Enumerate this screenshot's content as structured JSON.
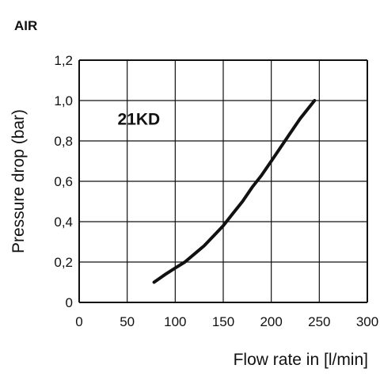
{
  "heading": "AIR",
  "chart_data": {
    "type": "line",
    "xlabel": "Flow rate in [l/min]",
    "ylabel": "Pressure drop (bar)",
    "xlim": [
      0,
      300
    ],
    "ylim": [
      0,
      1.2
    ],
    "x_ticks": [
      "0",
      "50",
      "100",
      "150",
      "200",
      "250",
      "300"
    ],
    "y_ticks": [
      "0",
      "0,2",
      "0,4",
      "0,6",
      "0,8",
      "1,0",
      "1,2"
    ],
    "grid": true,
    "annotations": [
      {
        "text": "21KD",
        "x": 40,
        "y": 0.88
      }
    ],
    "series": [
      {
        "color": "#111111",
        "x": [
          78,
          90,
          100,
          110,
          120,
          130,
          140,
          150,
          160,
          170,
          180,
          190,
          200,
          210,
          220,
          230,
          245
        ],
        "y": [
          0.1,
          0.14,
          0.17,
          0.2,
          0.24,
          0.28,
          0.33,
          0.38,
          0.44,
          0.5,
          0.57,
          0.63,
          0.7,
          0.77,
          0.84,
          0.91,
          1.0
        ]
      }
    ]
  }
}
